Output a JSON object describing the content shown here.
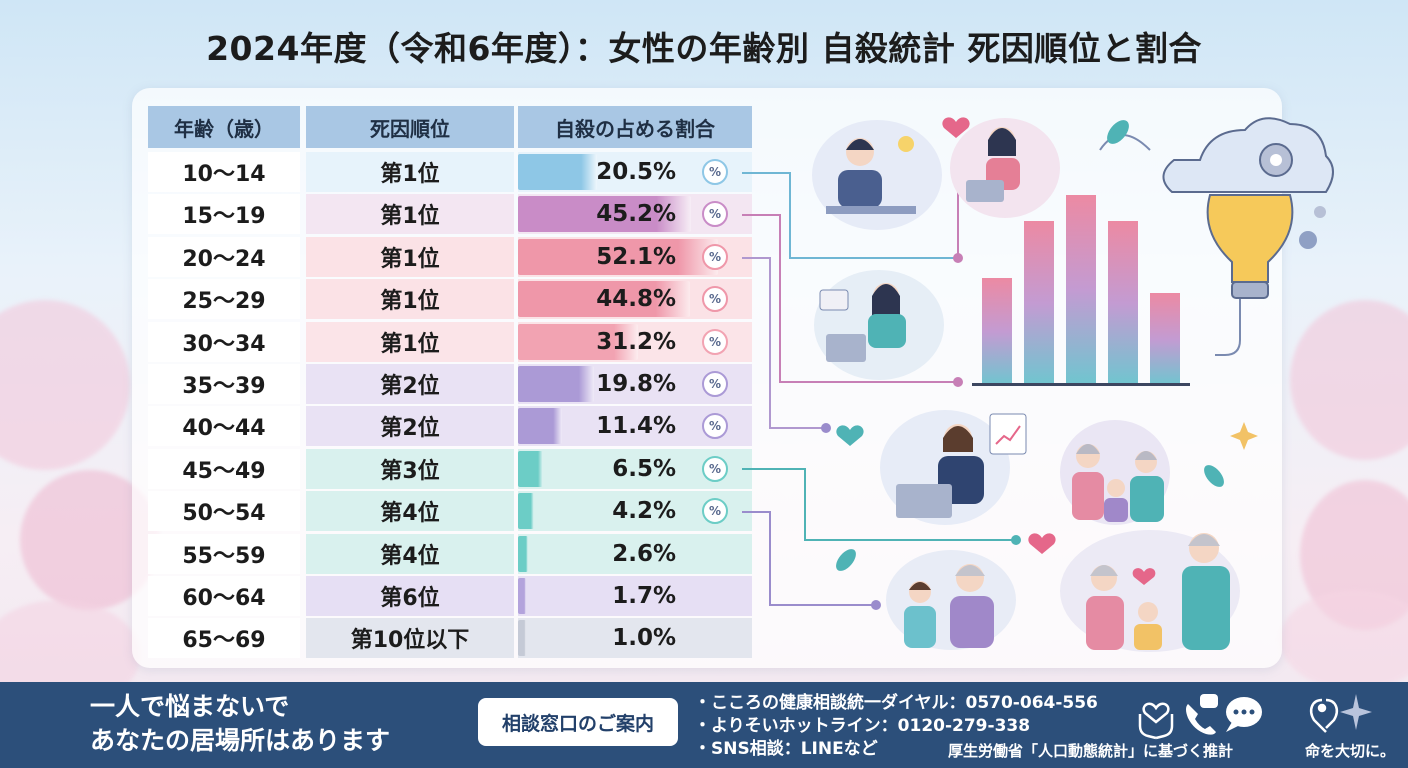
{
  "title": "2024年度（令和6年度）：女性の年齢別 自殺統計 死因順位と割合",
  "chart_data": {
    "type": "table",
    "columns": [
      "年齢（歳）",
      "死因順位",
      "自殺の占める割合"
    ],
    "rows": [
      {
        "age": "10〜14",
        "rank": "第1位",
        "value": 20.5,
        "label": "20.5%",
        "color": "#8ec7e6",
        "rowbg": "#e7f3fb",
        "ring": true
      },
      {
        "age": "15〜19",
        "rank": "第1位",
        "value": 45.2,
        "label": "45.2%",
        "color": "#c98cc7",
        "rowbg": "#f3e6f2",
        "ring": true
      },
      {
        "age": "20〜24",
        "rank": "第1位",
        "value": 52.1,
        "label": "52.1%",
        "color": "#ef97a9",
        "rowbg": "#fbe2e6",
        "ring": true
      },
      {
        "age": "25〜29",
        "rank": "第1位",
        "value": 44.8,
        "label": "44.8%",
        "color": "#ef97a9",
        "rowbg": "#fbe2e6",
        "ring": true
      },
      {
        "age": "30〜34",
        "rank": "第1位",
        "value": 31.2,
        "label": "31.2%",
        "color": "#f2a3b2",
        "rowbg": "#fbe4e8",
        "ring": true
      },
      {
        "age": "35〜39",
        "rank": "第2位",
        "value": 19.8,
        "label": "19.8%",
        "color": "#ab9ad6",
        "rowbg": "#e9e2f4",
        "ring": true
      },
      {
        "age": "40〜44",
        "rank": "第2位",
        "value": 11.4,
        "label": "11.4%",
        "color": "#ab9ad6",
        "rowbg": "#e9e2f4",
        "ring": true
      },
      {
        "age": "45〜49",
        "rank": "第3位",
        "value": 6.5,
        "label": "6.5%",
        "color": "#6ccdc6",
        "rowbg": "#d9f1ee",
        "ring": true
      },
      {
        "age": "50〜54",
        "rank": "第4位",
        "value": 4.2,
        "label": "4.2%",
        "color": "#6ccdc6",
        "rowbg": "#d9f1ee",
        "ring": true
      },
      {
        "age": "55〜59",
        "rank": "第4位",
        "value": 2.6,
        "label": "2.6%",
        "color": "#6ccdc6",
        "rowbg": "#d9f1ee",
        "ring": false
      },
      {
        "age": "60〜64",
        "rank": "第6位",
        "value": 1.7,
        "label": "1.7%",
        "color": "#b3a3dc",
        "rowbg": "#e6dff4",
        "ring": false
      },
      {
        "age": "65〜69",
        "rank": "第10位以下",
        "value": 1.0,
        "label": "1.0%",
        "color": "#c5cad6",
        "rowbg": "#e3e6ee",
        "ring": false
      }
    ],
    "max": 60
  },
  "illustration": {
    "bars": [
      42,
      64,
      74,
      64,
      36
    ],
    "colors": {
      "accent_pink": "#e58ba3",
      "accent_teal": "#4fb3b5",
      "accent_purple": "#a088c9"
    }
  },
  "footer": {
    "slogan_line1": "一人で悩まないで",
    "slogan_line2": "あなたの居場所はあります",
    "button": "相談窓口のご案内",
    "contacts": [
      "・こころの健康相談統一ダイヤル：0570-064-556",
      "・よりそいホットライン：0120-279-338",
      "・SNS相談：LINEなど"
    ],
    "source": "厚生労働省「人口動態統計」に基づく推計",
    "tagline": "命を大切に。",
    "icons": [
      "hands-heart-icon",
      "phone-chat-icon",
      "chat-bubble-icon",
      "family-heart-icon"
    ]
  },
  "ring_text": "%"
}
